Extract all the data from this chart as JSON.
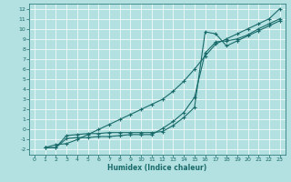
{
  "xlabel": "Humidex (Indice chaleur)",
  "bg_color": "#b3e0e0",
  "grid_color": "#ffffff",
  "line_color": "#1a6b6b",
  "xlim": [
    -0.5,
    23.5
  ],
  "ylim": [
    -2.5,
    12.5
  ],
  "xticks": [
    0,
    1,
    2,
    3,
    4,
    5,
    6,
    7,
    8,
    9,
    10,
    11,
    12,
    13,
    14,
    15,
    16,
    17,
    18,
    19,
    20,
    21,
    22,
    23
  ],
  "yticks": [
    -2,
    -1,
    0,
    1,
    2,
    3,
    4,
    5,
    6,
    7,
    8,
    9,
    10,
    11,
    12
  ],
  "line1_x": [
    1,
    2,
    3,
    4,
    5,
    6,
    7,
    8,
    9,
    10,
    11,
    12,
    13,
    14,
    15,
    16,
    17,
    18,
    19,
    20,
    21,
    22,
    23
  ],
  "line1_y": [
    -1.8,
    -1.8,
    -0.6,
    -0.5,
    -0.4,
    -0.4,
    -0.3,
    -0.3,
    -0.3,
    -0.3,
    -0.3,
    -0.2,
    0.4,
    1.2,
    2.2,
    9.7,
    9.5,
    8.3,
    8.8,
    9.3,
    9.8,
    10.3,
    10.8
  ],
  "line2_x": [
    1,
    2,
    3,
    4,
    5,
    6,
    7,
    8,
    9,
    10,
    11,
    12,
    13,
    14,
    15,
    16,
    17,
    18,
    19,
    20,
    21,
    22,
    23
  ],
  "line2_y": [
    -1.8,
    -1.8,
    -0.9,
    -0.8,
    -0.8,
    -0.7,
    -0.7,
    -0.6,
    -0.5,
    -0.5,
    -0.5,
    0.1,
    0.8,
    1.7,
    3.2,
    7.6,
    8.7,
    8.8,
    9.0,
    9.4,
    10.0,
    10.5,
    11.0
  ],
  "line3_x": [
    1,
    2,
    3,
    4,
    5,
    6,
    7,
    8,
    9,
    10,
    11,
    12,
    13,
    14,
    15,
    16,
    17,
    18,
    19,
    20,
    21,
    22,
    23
  ],
  "line3_y": [
    -1.8,
    -1.5,
    -1.4,
    -1.0,
    -0.5,
    0.0,
    0.5,
    1.0,
    1.5,
    2.0,
    2.5,
    3.0,
    3.8,
    4.8,
    6.0,
    7.3,
    8.5,
    9.0,
    9.5,
    10.0,
    10.5,
    11.0,
    12.0
  ]
}
